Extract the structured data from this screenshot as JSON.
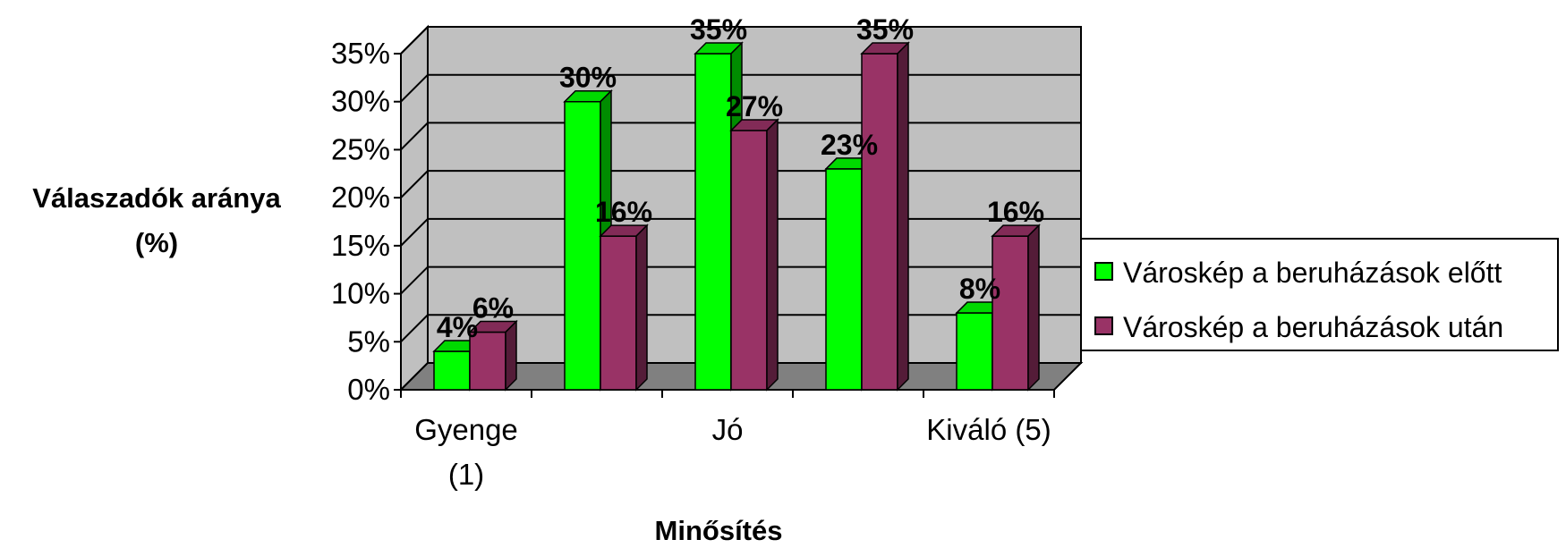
{
  "chart_data": {
    "type": "bar",
    "style": "3d-clustered-column",
    "title": "",
    "xlabel": "Minősítés",
    "ylabel": "Válaszadók aránya (%)",
    "ylabel_lines": [
      "Válaszadók aránya",
      "(%)"
    ],
    "categories": [
      "Gyenge (1)",
      "",
      "Jó",
      "",
      "Kiváló (5)"
    ],
    "category_label_lines": [
      [
        "Gyenge",
        "(1)"
      ],
      [],
      [
        "Jó"
      ],
      [],
      [
        "Kiváló (5)"
      ]
    ],
    "y_ticks": [
      "0%",
      "5%",
      "10%",
      "15%",
      "20%",
      "25%",
      "30%",
      "35%"
    ],
    "ylim": [
      0,
      35
    ],
    "grid": true,
    "legend_position": "right",
    "series": [
      {
        "name": "Városkép a beruházások előtt",
        "values": [
          4,
          30,
          35,
          23,
          8
        ],
        "labels": [
          "4%",
          "30%",
          "35%",
          "23%",
          "8%"
        ],
        "color": "#00ff00"
      },
      {
        "name": "Városkép a beruházások után",
        "values": [
          6,
          16,
          27,
          35,
          16
        ],
        "labels": [
          "6%",
          "16%",
          "27%",
          "35%",
          "16%"
        ],
        "color": "#993366"
      }
    ],
    "colors": {
      "wall": "#c0c0c0",
      "floor": "#808080"
    }
  }
}
